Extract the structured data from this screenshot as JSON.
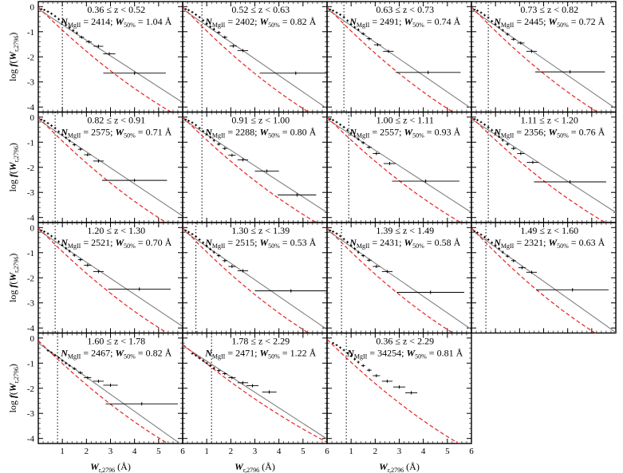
{
  "figure": {
    "ylabel_main": "log f(W",
    "ylabel_sub": "r,2796",
    "ylabel_close": ")",
    "xlabel_main": "W",
    "xlabel_sub": "r,2796",
    "xlabel_unit": " (Å)",
    "stat_N_sym": "N",
    "stat_N_sub": "MgII",
    "stat_W_sym": "W",
    "stat_W_sub": "50%",
    "stat_W_unit": " Å"
  },
  "colors": {
    "data": "#000000",
    "fit_solid": "#808080",
    "fit_dashed": "#e8201f",
    "wmin": "#000000"
  },
  "chart_data": [
    {
      "type": "scatter",
      "title": "0.36 ≤ z < 0.52",
      "N": "2414",
      "W50": "1.04",
      "wmin": 1.0,
      "xlim": [
        0,
        6
      ],
      "ylim": [
        -4.2,
        0.2
      ],
      "x": [
        0.13,
        0.25,
        0.4,
        0.55,
        0.7,
        0.85,
        1.0,
        1.15,
        1.3,
        1.45,
        1.6,
        1.8,
        2.1,
        2.5,
        2.95,
        4.0
      ],
      "y": [
        -0.1,
        -0.13,
        -0.2,
        -0.28,
        -0.38,
        -0.5,
        -0.62,
        -0.73,
        -0.84,
        -0.95,
        -1.05,
        -1.22,
        -1.4,
        -1.58,
        -1.88,
        -2.65
      ],
      "xerr": [
        0.05,
        0.05,
        0.05,
        0.05,
        0.05,
        0.05,
        0.05,
        0.05,
        0.05,
        0.05,
        0.05,
        0.1,
        0.12,
        0.2,
        0.25,
        1.3
      ],
      "fit_solid": {
        "a": -0.1,
        "b": -0.62
      },
      "fit_dashed": {
        "a": -0.02,
        "b": -0.95,
        "c": 0.035
      }
    },
    {
      "type": "scatter",
      "title": "0.52 ≤ z < 0.63",
      "N": "2402",
      "W50": "0.82",
      "wmin": 0.8,
      "xlim": [
        0,
        6
      ],
      "ylim": [
        -4.2,
        0.2
      ],
      "x": [
        0.13,
        0.25,
        0.4,
        0.55,
        0.7,
        0.85,
        1.0,
        1.15,
        1.3,
        1.5,
        1.75,
        2.1,
        2.5,
        4.7
      ],
      "y": [
        -0.1,
        -0.14,
        -0.22,
        -0.32,
        -0.42,
        -0.55,
        -0.68,
        -0.8,
        -0.9,
        -1.03,
        -1.22,
        -1.57,
        -1.75,
        -2.65
      ],
      "xerr": [
        0.05,
        0.05,
        0.05,
        0.05,
        0.05,
        0.05,
        0.05,
        0.05,
        0.05,
        0.08,
        0.1,
        0.15,
        0.22,
        1.5
      ],
      "fit_solid": {
        "a": -0.1,
        "b": -0.66
      },
      "fit_dashed": {
        "a": -0.01,
        "b": -1.0,
        "c": 0.038
      }
    },
    {
      "type": "scatter",
      "title": "0.63 ≤ z < 0.73",
      "N": "2491",
      "W50": "0.74",
      "wmin": 0.7,
      "xlim": [
        0,
        6
      ],
      "ylim": [
        -4.2,
        0.2
      ],
      "x": [
        0.13,
        0.25,
        0.4,
        0.55,
        0.7,
        0.85,
        1.0,
        1.15,
        1.3,
        1.5,
        1.75,
        2.1,
        2.55,
        4.2
      ],
      "y": [
        -0.12,
        -0.16,
        -0.24,
        -0.32,
        -0.42,
        -0.56,
        -0.7,
        -0.82,
        -0.92,
        -1.08,
        -1.28,
        -1.52,
        -1.78,
        -2.62
      ],
      "xerr": [
        0.05,
        0.05,
        0.05,
        0.05,
        0.05,
        0.05,
        0.05,
        0.05,
        0.05,
        0.08,
        0.1,
        0.15,
        0.22,
        1.35
      ],
      "fit_solid": {
        "a": -0.1,
        "b": -0.66
      },
      "fit_dashed": {
        "a": -0.01,
        "b": -1.0,
        "c": 0.038
      }
    },
    {
      "type": "scatter",
      "title": "0.73 ≤ z < 0.82",
      "N": "2445",
      "W50": "0.72",
      "wmin": 0.7,
      "xlim": [
        0,
        6
      ],
      "ylim": [
        -4.2,
        0.2
      ],
      "x": [
        0.13,
        0.25,
        0.4,
        0.55,
        0.7,
        0.85,
        1.0,
        1.15,
        1.3,
        1.5,
        1.75,
        2.05,
        2.5,
        4.1
      ],
      "y": [
        -0.12,
        -0.16,
        -0.24,
        -0.34,
        -0.44,
        -0.58,
        -0.7,
        -0.82,
        -0.94,
        -1.1,
        -1.3,
        -1.45,
        -1.78,
        -2.6
      ],
      "xerr": [
        0.05,
        0.05,
        0.05,
        0.05,
        0.05,
        0.05,
        0.05,
        0.05,
        0.05,
        0.08,
        0.1,
        0.15,
        0.22,
        1.45
      ],
      "fit_solid": {
        "a": -0.1,
        "b": -0.66
      },
      "fit_dashed": {
        "a": -0.01,
        "b": -1.0,
        "c": 0.038
      }
    },
    {
      "type": "scatter",
      "title": "0.82 ≤ z < 0.91",
      "N": "2575",
      "W50": "0.71",
      "wmin": 0.7,
      "xlim": [
        0,
        6
      ],
      "ylim": [
        -4.2,
        0.2
      ],
      "x": [
        0.13,
        0.25,
        0.4,
        0.55,
        0.7,
        0.85,
        1.0,
        1.15,
        1.3,
        1.5,
        1.75,
        2.05,
        2.5,
        4.0
      ],
      "y": [
        -0.1,
        -0.15,
        -0.24,
        -0.34,
        -0.44,
        -0.58,
        -0.7,
        -0.82,
        -0.95,
        -1.1,
        -1.28,
        -1.5,
        -1.75,
        -2.52
      ],
      "xerr": [
        0.05,
        0.05,
        0.05,
        0.05,
        0.05,
        0.05,
        0.05,
        0.05,
        0.05,
        0.08,
        0.1,
        0.15,
        0.22,
        1.35
      ],
      "fit_solid": {
        "a": -0.1,
        "b": -0.64
      },
      "fit_dashed": {
        "a": -0.01,
        "b": -0.98,
        "c": 0.036
      }
    },
    {
      "type": "scatter",
      "title": "0.91 ≤ z < 1.00",
      "N": "2288",
      "W50": "0.80",
      "wmin": 0.8,
      "xlim": [
        0,
        6
      ],
      "ylim": [
        -4.2,
        0.2
      ],
      "x": [
        0.13,
        0.25,
        0.4,
        0.55,
        0.7,
        0.85,
        1.0,
        1.15,
        1.3,
        1.5,
        1.75,
        2.05,
        2.5,
        3.5,
        4.75
      ],
      "y": [
        -0.1,
        -0.15,
        -0.22,
        -0.32,
        -0.44,
        -0.56,
        -0.68,
        -0.8,
        -0.93,
        -1.08,
        -1.25,
        -1.52,
        -1.7,
        -2.15,
        -3.1
      ],
      "xerr": [
        0.05,
        0.05,
        0.05,
        0.05,
        0.05,
        0.05,
        0.05,
        0.05,
        0.05,
        0.08,
        0.1,
        0.15,
        0.22,
        0.5,
        0.8
      ],
      "fit_solid": {
        "a": -0.08,
        "b": -0.62
      },
      "fit_dashed": {
        "a": 0.0,
        "b": -0.95,
        "c": 0.035
      }
    },
    {
      "type": "scatter",
      "title": "1.00 ≤ z < 1.11",
      "N": "2557",
      "W50": "0.93",
      "wmin": 0.9,
      "xlim": [
        0,
        6
      ],
      "ylim": [
        -4.2,
        0.2
      ],
      "x": [
        0.13,
        0.25,
        0.4,
        0.55,
        0.7,
        0.85,
        1.0,
        1.15,
        1.3,
        1.5,
        1.75,
        2.05,
        2.6,
        4.1
      ],
      "y": [
        -0.08,
        -0.12,
        -0.2,
        -0.3,
        -0.4,
        -0.52,
        -0.64,
        -0.76,
        -0.88,
        -1.02,
        -1.2,
        -1.45,
        -1.85,
        -2.55
      ],
      "xerr": [
        0.05,
        0.05,
        0.05,
        0.05,
        0.05,
        0.05,
        0.05,
        0.05,
        0.05,
        0.08,
        0.1,
        0.15,
        0.25,
        1.4
      ],
      "fit_solid": {
        "a": -0.08,
        "b": -0.62
      },
      "fit_dashed": {
        "a": 0.0,
        "b": -0.95,
        "c": 0.035
      }
    },
    {
      "type": "scatter",
      "title": "1.11 ≤ z < 1.20",
      "N": "2356",
      "W50": "0.76",
      "wmin": 0.7,
      "xlim": [
        0,
        6
      ],
      "ylim": [
        -4.2,
        0.2
      ],
      "x": [
        0.13,
        0.25,
        0.4,
        0.55,
        0.7,
        0.85,
        1.0,
        1.15,
        1.3,
        1.5,
        1.75,
        2.05,
        2.55,
        4.1
      ],
      "y": [
        -0.08,
        -0.12,
        -0.2,
        -0.3,
        -0.4,
        -0.52,
        -0.64,
        -0.78,
        -0.92,
        -1.08,
        -1.25,
        -1.45,
        -1.8,
        -2.58
      ],
      "xerr": [
        0.05,
        0.05,
        0.05,
        0.05,
        0.05,
        0.05,
        0.05,
        0.05,
        0.05,
        0.08,
        0.1,
        0.15,
        0.25,
        1.5
      ],
      "fit_solid": {
        "a": -0.08,
        "b": -0.62
      },
      "fit_dashed": {
        "a": 0.0,
        "b": -0.95,
        "c": 0.035
      }
    },
    {
      "type": "scatter",
      "title": "1.20 ≤ z < 1.30",
      "N": "2521",
      "W50": "0.70",
      "wmin": 0.7,
      "xlim": [
        0,
        6
      ],
      "ylim": [
        -4.2,
        0.2
      ],
      "x": [
        0.13,
        0.25,
        0.4,
        0.55,
        0.7,
        0.85,
        1.0,
        1.15,
        1.3,
        1.5,
        1.75,
        2.05,
        2.5,
        4.2
      ],
      "y": [
        -0.12,
        -0.16,
        -0.24,
        -0.34,
        -0.44,
        -0.56,
        -0.7,
        -0.82,
        -0.94,
        -1.1,
        -1.28,
        -1.5,
        -1.75,
        -2.45
      ],
      "xerr": [
        0.05,
        0.05,
        0.05,
        0.05,
        0.05,
        0.05,
        0.05,
        0.05,
        0.05,
        0.08,
        0.1,
        0.15,
        0.22,
        1.3
      ],
      "fit_solid": {
        "a": -0.1,
        "b": -0.64
      },
      "fit_dashed": {
        "a": -0.01,
        "b": -0.98,
        "c": 0.037
      }
    },
    {
      "type": "scatter",
      "title": "1.30 ≤ z < 1.39",
      "N": "2515",
      "W50": "0.53",
      "wmin": 0.55,
      "xlim": [
        0,
        6
      ],
      "ylim": [
        -4.2,
        0.2
      ],
      "x": [
        0.13,
        0.25,
        0.4,
        0.55,
        0.7,
        0.85,
        1.0,
        1.15,
        1.3,
        1.5,
        1.75,
        2.05,
        2.5,
        4.5
      ],
      "y": [
        -0.12,
        -0.18,
        -0.26,
        -0.36,
        -0.48,
        -0.6,
        -0.74,
        -0.86,
        -0.98,
        -1.12,
        -1.32,
        -1.55,
        -1.72,
        -2.52
      ],
      "xerr": [
        0.05,
        0.05,
        0.05,
        0.05,
        0.05,
        0.05,
        0.05,
        0.05,
        0.05,
        0.08,
        0.1,
        0.15,
        0.22,
        1.5
      ],
      "fit_solid": {
        "a": -0.1,
        "b": -0.66
      },
      "fit_dashed": {
        "a": -0.01,
        "b": -1.0,
        "c": 0.038
      }
    },
    {
      "type": "scatter",
      "title": "1.39 ≤ z < 1.49",
      "N": "2431",
      "W50": "0.58",
      "wmin": 0.6,
      "xlim": [
        0,
        6
      ],
      "ylim": [
        -4.2,
        0.2
      ],
      "x": [
        0.13,
        0.25,
        0.4,
        0.55,
        0.7,
        0.85,
        1.0,
        1.15,
        1.3,
        1.5,
        1.75,
        2.05,
        2.5,
        4.3
      ],
      "y": [
        -0.12,
        -0.16,
        -0.24,
        -0.34,
        -0.46,
        -0.58,
        -0.72,
        -0.84,
        -0.98,
        -1.12,
        -1.3,
        -1.55,
        -1.75,
        -2.58
      ],
      "xerr": [
        0.05,
        0.05,
        0.05,
        0.05,
        0.05,
        0.05,
        0.05,
        0.05,
        0.05,
        0.08,
        0.1,
        0.15,
        0.22,
        1.4
      ],
      "fit_solid": {
        "a": -0.1,
        "b": -0.66
      },
      "fit_dashed": {
        "a": -0.01,
        "b": -1.0,
        "c": 0.038
      }
    },
    {
      "type": "scatter",
      "title": "1.49 ≤ z < 1.60",
      "N": "2321",
      "W50": "0.63",
      "wmin": 0.6,
      "xlim": [
        0,
        6
      ],
      "ylim": [
        -4.2,
        0.2
      ],
      "x": [
        0.13,
        0.25,
        0.4,
        0.55,
        0.7,
        0.85,
        1.0,
        1.15,
        1.3,
        1.5,
        1.75,
        2.1,
        2.5,
        4.2
      ],
      "y": [
        -0.15,
        -0.2,
        -0.28,
        -0.38,
        -0.48,
        -0.6,
        -0.72,
        -0.84,
        -0.98,
        -1.14,
        -1.32,
        -1.6,
        -1.78,
        -2.48
      ],
      "xerr": [
        0.05,
        0.05,
        0.05,
        0.05,
        0.05,
        0.05,
        0.05,
        0.05,
        0.05,
        0.08,
        0.1,
        0.15,
        0.22,
        1.5
      ],
      "fit_solid": {
        "a": -0.1,
        "b": -0.68
      },
      "fit_dashed": {
        "a": -0.01,
        "b": -1.02,
        "c": 0.04
      }
    },
    {
      "type": "scatter",
      "title": "1.60 ≤ z < 1.78",
      "N": "2467",
      "W50": "0.82",
      "wmin": 0.8,
      "xlim": [
        0,
        6
      ],
      "ylim": [
        -4.2,
        0.2
      ],
      "x": [
        0.4,
        0.55,
        0.7,
        0.85,
        1.0,
        1.15,
        1.3,
        1.5,
        1.75,
        2.05,
        2.5,
        3.0,
        4.3
      ],
      "y": [
        -0.5,
        -0.58,
        -0.68,
        -0.78,
        -0.9,
        -1.0,
        -1.1,
        -1.22,
        -1.38,
        -1.58,
        -1.72,
        -1.88,
        -2.62
      ],
      "xerr": [
        0.05,
        0.05,
        0.05,
        0.05,
        0.05,
        0.05,
        0.05,
        0.08,
        0.1,
        0.15,
        0.22,
        0.3,
        1.5
      ],
      "fit_solid": {
        "a": -0.2,
        "b": -0.68
      },
      "fit_dashed": {
        "a": -0.1,
        "b": -0.95,
        "c": 0.035
      }
    },
    {
      "type": "scatter",
      "title": "1.78 ≤ z < 2.29",
      "N": "2471",
      "W50": "1.22",
      "wmin": 1.2,
      "xlim": [
        0,
        6
      ],
      "ylim": [
        -4.2,
        0.2
      ],
      "x": [
        0.4,
        0.55,
        0.7,
        0.85,
        1.0,
        1.15,
        1.3,
        1.5,
        1.75,
        2.05,
        2.5,
        2.9,
        3.6
      ],
      "y": [
        -0.62,
        -0.7,
        -0.8,
        -0.9,
        -1.0,
        -1.1,
        -1.2,
        -1.3,
        -1.42,
        -1.58,
        -1.78,
        -1.9,
        -2.15
      ],
      "xerr": [
        0.05,
        0.05,
        0.05,
        0.05,
        0.05,
        0.05,
        0.05,
        0.08,
        0.1,
        0.15,
        0.22,
        0.25,
        0.3
      ],
      "fit_solid": {
        "a": -0.3,
        "b": -0.62
      },
      "fit_dashed": {
        "a": -0.25,
        "b": -0.8,
        "c": 0.025
      }
    },
    {
      "type": "scatter",
      "title": "0.36 ≤ z < 2.29",
      "N": "34254",
      "W50": "0.81",
      "wmin": 0.8,
      "xlim": [
        0,
        6
      ],
      "ylim": [
        -4.2,
        0.2
      ],
      "x": [
        0.25,
        0.4,
        0.55,
        0.7,
        0.85,
        1.0,
        1.15,
        1.3,
        1.5,
        1.75,
        2.05,
        2.5,
        3.0,
        3.5
      ],
      "y": [
        -0.2,
        -0.28,
        -0.38,
        -0.48,
        -0.6,
        -0.72,
        -0.84,
        -0.96,
        -1.1,
        -1.28,
        -1.5,
        -1.72,
        -1.95,
        -2.18
      ],
      "xerr": [
        0.05,
        0.05,
        0.05,
        0.05,
        0.05,
        0.05,
        0.05,
        0.05,
        0.08,
        0.1,
        0.15,
        0.22,
        0.25,
        0.25
      ],
      "fit_solid": null,
      "fit_dashed": {
        "a": -0.05,
        "b": -0.95,
        "c": 0.035
      }
    }
  ]
}
